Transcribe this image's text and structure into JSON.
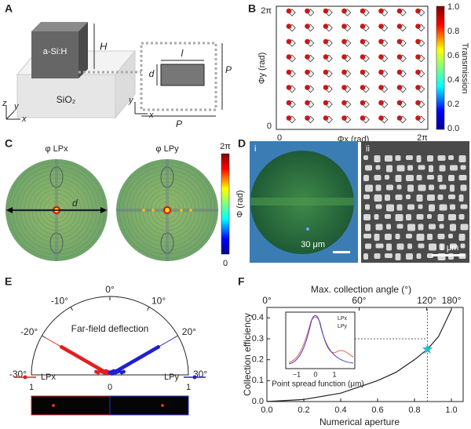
{
  "panels": {
    "a": {
      "label": "A",
      "block": "a-Si:H",
      "height": "H",
      "substrate": "SiO₂",
      "axes": [
        "z",
        "y",
        "x"
      ],
      "cell": {
        "length": "l",
        "width": "d",
        "period_y": "P",
        "period_x": "P",
        "axes": [
          "y",
          "x"
        ]
      }
    },
    "b": {
      "label": "B",
      "y_tick_top": "2π",
      "y_tick_bottom": "0",
      "x_tick_left": "0",
      "x_tick_right": "2π",
      "x_axis": "Φx (rad)",
      "y_axis": "Φy (rad)",
      "colorbar": {
        "title": "Transmission",
        "ticks": [
          "1.0",
          "0.8",
          "0.6",
          "0.4",
          "0.2",
          "0.0"
        ]
      }
    },
    "c": {
      "label": "C",
      "left": "φ LPx",
      "right": "φ LPy",
      "distance": "d",
      "colorbar": {
        "top": "2π",
        "bottom": "0",
        "title": "Φ (rad)"
      }
    },
    "d": {
      "label": "D",
      "left": "i",
      "right": "ii",
      "left_scale": "30 μm",
      "right_scale": "1 μm"
    },
    "e": {
      "label": "E",
      "angles": [
        "-30°",
        "-20°",
        "-10°",
        "0°",
        "10°",
        "20°",
        "30°"
      ],
      "title": "Far-field deflection",
      "legend": [
        "LPx",
        "LPy"
      ],
      "radius": [
        "1",
        "0",
        "1"
      ]
    },
    "f": {
      "label": "F",
      "top_axis": "Max. collection angle (°)",
      "top_ticks": [
        "0°",
        "60°",
        "120°",
        "180°"
      ],
      "y_axis": "Collection efficiency",
      "y_ticks": [
        "0.0",
        "0.1",
        "0.2",
        "0.3",
        "0.4"
      ],
      "x_axis": "Numerical aperture",
      "x_ticks": [
        "0.0",
        "0.2",
        "0.4",
        "0.6",
        "0.8",
        "1.0"
      ],
      "curve": {
        "x": [
          0,
          0.2,
          0.4,
          0.6,
          0.7,
          0.8,
          0.87,
          0.93,
          1.0
        ],
        "y": [
          0,
          0.01,
          0.04,
          0.1,
          0.14,
          0.2,
          0.25,
          0.31,
          0.44
        ]
      },
      "star": [
        0.87,
        0.25
      ],
      "guide": 0.3,
      "inset": {
        "legend": [
          "LPx",
          "LPy"
        ],
        "ticks": [
          "−1",
          "0",
          "1"
        ],
        "x_axis": "Point spread function (μm)"
      }
    }
  }
}
